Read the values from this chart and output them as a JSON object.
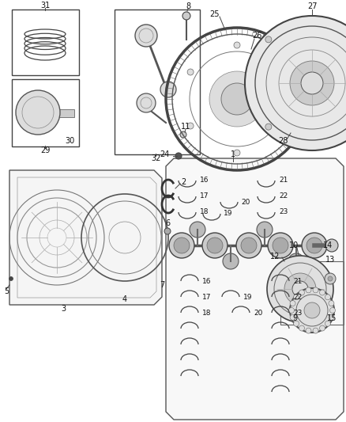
{
  "bg_color": "#ffffff",
  "lc": "#444444",
  "gray": "#888888",
  "lgray": "#bbbbbb",
  "dgray": "#555555",
  "figsize": [
    4.38,
    5.33
  ],
  "dpi": 100
}
